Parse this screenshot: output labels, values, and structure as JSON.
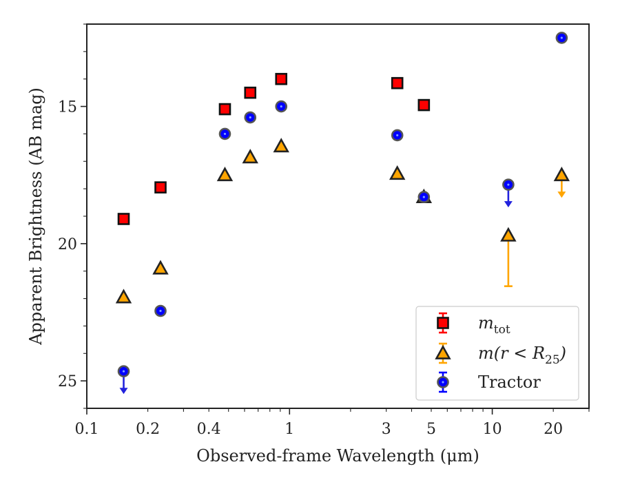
{
  "colors": {
    "m_tot": "#ff0000",
    "m_r25": "#ffa500",
    "tractor": "#0000ff",
    "tractor_edge": "#555555",
    "upper_limit_tractor": "#2222dd",
    "upper_limit_r25": "#ffa500",
    "frame": "#222222"
  },
  "chart_data": {
    "type": "scatter",
    "xlabel": "Observed-frame Wavelength (μm)",
    "ylabel": "Apparent Brightness (AB mag)",
    "xscale": "log",
    "xlim": [
      0.1,
      30
    ],
    "ylim": [
      26,
      12
    ],
    "y_inverted": true,
    "x_ticks": [
      0.1,
      0.2,
      0.4,
      1,
      3,
      5,
      10,
      20
    ],
    "x_tick_labels": [
      "0.1",
      "0.2",
      "0.4",
      "1",
      "3",
      "5",
      "10",
      "20"
    ],
    "y_ticks": [
      15,
      20,
      25
    ],
    "y_tick_labels": [
      "15",
      "20",
      "25"
    ],
    "legend_position": "lower-right",
    "series": [
      {
        "name": "m_tot",
        "legend_main": "m",
        "legend_sub": "tot",
        "marker": "square",
        "points": [
          {
            "x": 0.152,
            "y": 19.1
          },
          {
            "x": 0.231,
            "y": 17.95
          },
          {
            "x": 0.48,
            "y": 15.1
          },
          {
            "x": 0.64,
            "y": 14.5
          },
          {
            "x": 0.91,
            "y": 14.0
          },
          {
            "x": 3.4,
            "y": 14.15
          },
          {
            "x": 4.6,
            "y": 14.95
          }
        ]
      },
      {
        "name": "m(r < R25)",
        "legend_main": "m(r < R",
        "legend_sub": "25",
        "legend_close": ")",
        "marker": "triangle",
        "points": [
          {
            "x": 0.152,
            "y": 21.95
          },
          {
            "x": 0.231,
            "y": 20.9
          },
          {
            "x": 0.48,
            "y": 17.5
          },
          {
            "x": 0.64,
            "y": 16.85
          },
          {
            "x": 0.91,
            "y": 16.45
          },
          {
            "x": 3.4,
            "y": 17.45
          },
          {
            "x": 4.6,
            "y": 18.3
          },
          {
            "x": 12.0,
            "y": 19.7,
            "err_low": 1.85,
            "err_high": 0
          },
          {
            "x": 22.0,
            "y": 17.5,
            "upper_limit": true
          }
        ]
      },
      {
        "name": "Tractor",
        "legend_main": "Tractor",
        "marker": "circle",
        "points": [
          {
            "x": 0.152,
            "y": 24.65,
            "upper_limit": true
          },
          {
            "x": 0.231,
            "y": 22.45
          },
          {
            "x": 0.48,
            "y": 16.0
          },
          {
            "x": 0.64,
            "y": 15.4
          },
          {
            "x": 0.91,
            "y": 15.0
          },
          {
            "x": 3.4,
            "y": 16.05
          },
          {
            "x": 4.6,
            "y": 18.3
          },
          {
            "x": 12.0,
            "y": 17.85,
            "upper_limit": true
          },
          {
            "x": 22.0,
            "y": 12.5
          }
        ]
      }
    ]
  }
}
